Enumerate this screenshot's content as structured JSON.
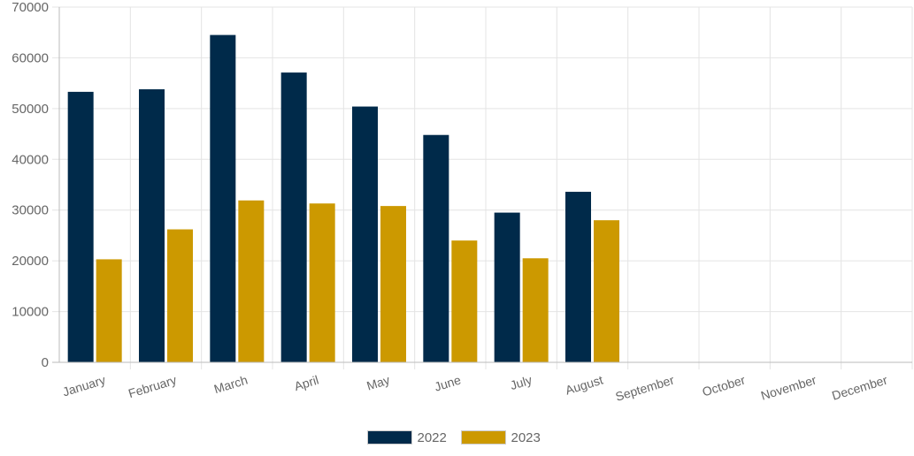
{
  "chart_data": {
    "type": "bar",
    "title": "",
    "xlabel": "",
    "ylabel": "",
    "categories": [
      "January",
      "February",
      "March",
      "April",
      "May",
      "June",
      "July",
      "August",
      "September",
      "October",
      "November",
      "December"
    ],
    "series": [
      {
        "name": "2022",
        "color": "#002a4a",
        "values": [
          53300,
          53800,
          64500,
          57100,
          50400,
          44800,
          29500,
          33600,
          null,
          null,
          null,
          null
        ]
      },
      {
        "name": "2023",
        "color": "#cc9900",
        "values": [
          20300,
          26200,
          31900,
          31300,
          30800,
          24000,
          20500,
          28000,
          null,
          null,
          null,
          null
        ]
      }
    ],
    "ylim": [
      0,
      70000
    ],
    "yticks": [
      "0",
      "10000",
      "20000",
      "30000",
      "40000",
      "50000",
      "60000",
      "70000"
    ],
    "grid": true,
    "legend_position": "bottom"
  }
}
